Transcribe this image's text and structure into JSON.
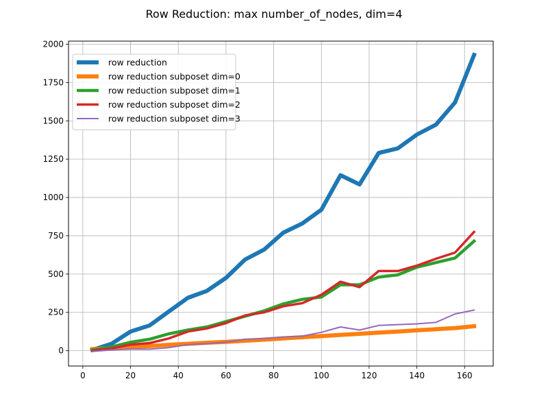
{
  "chart_data": {
    "type": "line",
    "title": "Row Reduction: max number_of_nodes, dim=4",
    "xlabel": "",
    "ylabel": "",
    "xlim": [
      -6,
      172
    ],
    "ylim": [
      -100,
      2020
    ],
    "xticks": [
      0,
      20,
      40,
      60,
      80,
      100,
      120,
      140,
      160
    ],
    "yticks": [
      0,
      250,
      500,
      750,
      1000,
      1250,
      1500,
      1750,
      2000
    ],
    "grid": true,
    "legend_position": "upper-left",
    "x": [
      4,
      12,
      20,
      28,
      36,
      44,
      52,
      60,
      68,
      76,
      84,
      92,
      100,
      108,
      116,
      124,
      132,
      140,
      148,
      156,
      164
    ],
    "series": [
      {
        "name": "row reduction",
        "color": "#1f77b4",
        "line_width": 6,
        "values": [
          5,
          45,
          125,
          165,
          255,
          345,
          390,
          475,
          595,
          660,
          770,
          830,
          920,
          1145,
          1085,
          1290,
          1320,
          1410,
          1475,
          1620,
          1930
        ]
      },
      {
        "name": "row reduction subposet dim=0",
        "color": "#ff7f0e",
        "line_width": 6,
        "values": [
          10,
          18,
          25,
          30,
          38,
          45,
          52,
          58,
          65,
          72,
          80,
          88,
          95,
          103,
          110,
          118,
          125,
          133,
          140,
          148,
          160
        ]
      },
      {
        "name": "row reduction subposet dim=1",
        "color": "#2ca02c",
        "line_width": 4.5,
        "values": [
          5,
          25,
          55,
          75,
          110,
          135,
          155,
          190,
          225,
          260,
          305,
          335,
          350,
          430,
          430,
          480,
          495,
          545,
          575,
          605,
          715
        ]
      },
      {
        "name": "row reduction subposet dim=2",
        "color": "#d62728",
        "line_width": 3.5,
        "values": [
          0,
          15,
          40,
          50,
          80,
          125,
          145,
          180,
          230,
          250,
          290,
          310,
          365,
          450,
          415,
          520,
          520,
          555,
          600,
          640,
          775
        ]
      },
      {
        "name": "row reduction subposet dim=3",
        "color": "#9467bd",
        "line_width": 2,
        "values": [
          -5,
          5,
          10,
          10,
          20,
          40,
          45,
          55,
          75,
          80,
          90,
          95,
          120,
          155,
          135,
          165,
          170,
          175,
          185,
          240,
          265
        ]
      }
    ]
  }
}
